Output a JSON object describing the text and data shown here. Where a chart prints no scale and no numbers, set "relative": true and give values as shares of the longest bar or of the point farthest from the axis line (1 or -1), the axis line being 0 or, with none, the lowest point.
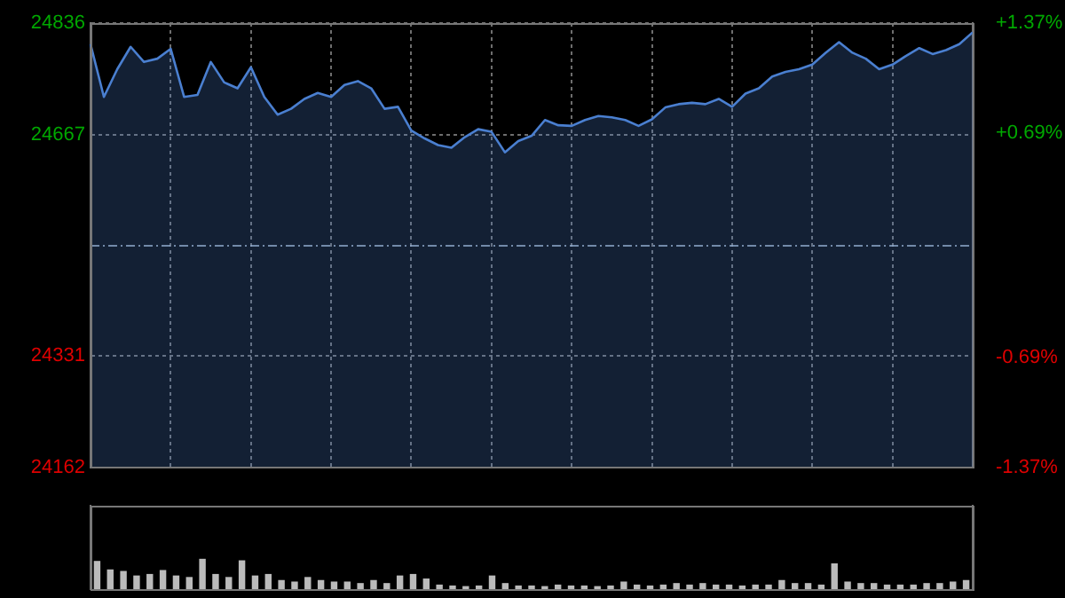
{
  "chart_data": [
    {
      "type": "area",
      "categories": [
        null,
        null,
        null,
        null,
        null,
        null,
        null,
        null,
        null,
        null,
        null,
        null,
        null,
        null,
        null,
        null,
        null,
        null,
        null,
        null,
        null,
        null,
        null,
        null,
        null,
        null,
        null,
        null,
        null,
        null,
        null,
        null,
        null,
        null,
        null,
        null,
        null,
        null,
        null,
        null,
        null,
        null,
        null,
        null,
        null,
        null,
        null,
        null,
        null,
        null,
        null,
        null,
        null,
        null,
        null,
        null,
        null,
        null,
        null,
        null,
        null,
        null,
        null,
        null,
        null,
        null,
        null
      ],
      "series": [
        {
          "color": "#4a7fd0",
          "values": [
            24804,
            24724,
            24766,
            24800,
            24777,
            24782,
            24797,
            24724,
            24727,
            24777,
            24746,
            24737,
            24769,
            24724,
            24697,
            24706,
            24721,
            24730,
            24724,
            24742,
            24748,
            24737,
            24706,
            24709,
            24673,
            24661,
            24651,
            24647,
            24663,
            24675,
            24671,
            24640,
            24657,
            24665,
            24689,
            24681,
            24680,
            24689,
            24695,
            24693,
            24689,
            24680,
            24690,
            24708,
            24713,
            24715,
            24713,
            24721,
            24709,
            24729,
            24737,
            24755,
            24762,
            24766,
            24773,
            24791,
            24807,
            24791,
            24782,
            24766,
            24773,
            24786,
            24798,
            24789,
            24795,
            24804,
            24822
          ]
        }
      ],
      "ylim": [
        24162,
        24836
      ],
      "yticks": [
        24162,
        24331,
        24667,
        24836
      ],
      "y2lim": [
        -1.37,
        1.37
      ],
      "y2ticks": [
        {
          "value": -1.37,
          "label": "-1.37%"
        },
        {
          "value": -0.69,
          "label": "-0.69%"
        },
        {
          "value": 0.69,
          "label": "+0.69%"
        },
        {
          "value": 1.37,
          "label": "+1.37%"
        }
      ],
      "ref_lines": [
        {
          "axis": "y",
          "value": 24499,
          "line_style": "dashed"
        }
      ],
      "grid": true
    },
    {
      "type": "bar",
      "relative": true,
      "categories": [
        null,
        null,
        null,
        null,
        null,
        null,
        null,
        null,
        null,
        null,
        null,
        null,
        null,
        null,
        null,
        null,
        null,
        null,
        null,
        null,
        null,
        null,
        null,
        null,
        null,
        null,
        null,
        null,
        null,
        null,
        null,
        null,
        null,
        null,
        null,
        null,
        null,
        null,
        null,
        null,
        null,
        null,
        null,
        null,
        null,
        null,
        null,
        null,
        null,
        null,
        null,
        null,
        null,
        null,
        null,
        null,
        null,
        null,
        null,
        null,
        null,
        null,
        null,
        null,
        null,
        null,
        null
      ],
      "values": [
        0.93,
        0.65,
        0.6,
        0.45,
        0.5,
        0.63,
        0.45,
        0.4,
        1.0,
        0.5,
        0.4,
        0.95,
        0.45,
        0.5,
        0.3,
        0.25,
        0.4,
        0.3,
        0.25,
        0.25,
        0.2,
        0.3,
        0.2,
        0.45,
        0.5,
        0.35,
        0.15,
        0.12,
        0.1,
        0.12,
        0.45,
        0.2,
        0.12,
        0.12,
        0.1,
        0.15,
        0.12,
        0.12,
        0.1,
        0.12,
        0.25,
        0.15,
        0.12,
        0.15,
        0.2,
        0.15,
        0.2,
        0.15,
        0.15,
        0.12,
        0.15,
        0.15,
        0.3,
        0.2,
        0.2,
        0.15,
        0.85,
        0.25,
        0.2,
        0.2,
        0.15,
        0.15,
        0.15,
        0.2,
        0.2,
        0.25,
        0.3
      ],
      "color": "#bbbbbb"
    }
  ]
}
